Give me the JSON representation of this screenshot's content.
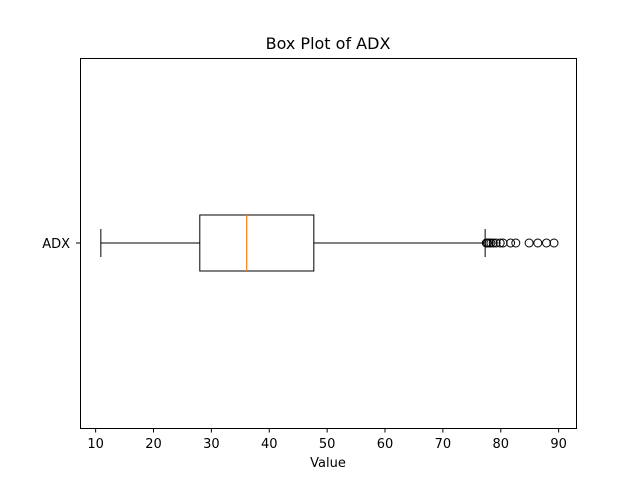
{
  "chart_data": {
    "type": "boxplot",
    "title": "Box Plot of ADX",
    "xlabel": "Value",
    "ylabel": "",
    "orientation": "horizontal",
    "xlim": [
      7.3,
      93.0
    ],
    "xticks": [
      10,
      20,
      30,
      40,
      50,
      60,
      70,
      80,
      90
    ],
    "categories": [
      "ADX"
    ],
    "series": [
      {
        "name": "ADX",
        "whisker_low": 10.9,
        "q1": 28.0,
        "median": 36.1,
        "q3": 47.7,
        "whisker_high": 77.3,
        "outliers": [
          77.5,
          77.7,
          78.0,
          78.3,
          78.7,
          79.2,
          79.9,
          80.4,
          81.7,
          82.6,
          84.9,
          86.4,
          87.9,
          89.2
        ]
      }
    ],
    "colors": {
      "box": "#000000",
      "median": "#ff7f0e",
      "outlier": "#000000"
    },
    "grid": false,
    "legend": "none"
  }
}
